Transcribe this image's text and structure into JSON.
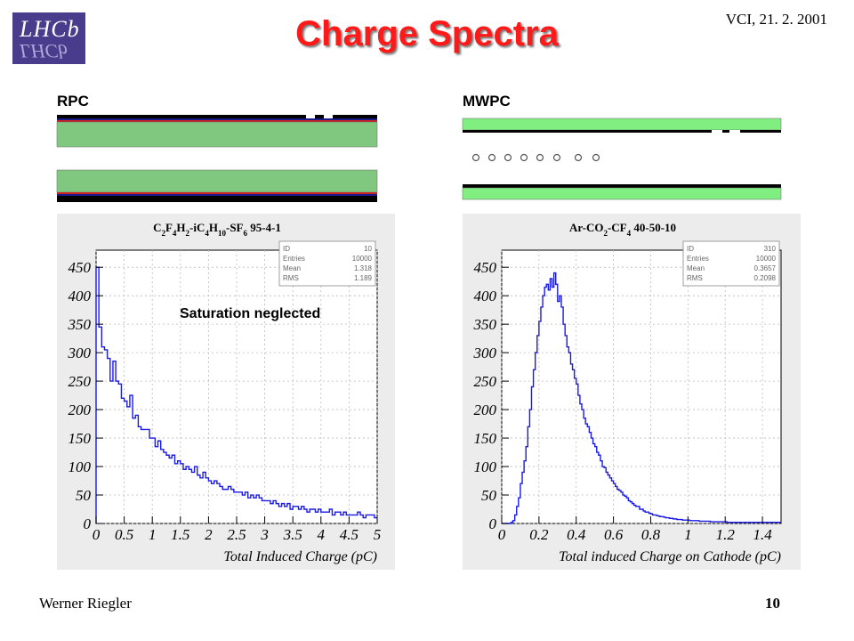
{
  "header": {
    "title": "Charge Spectra",
    "conference": "VCI, 21. 2. 2001",
    "logo_text": "LHCb"
  },
  "detectors": {
    "rpc_label": "RPC",
    "mwpc_label": "MWPC"
  },
  "footer": {
    "author": "Werner Riegler",
    "page": "10"
  },
  "colors": {
    "title": "#ff1a1a",
    "histogram": "#1a1ae6",
    "gas_gap_green": "#80c880",
    "mwpc_green": "#80ee80"
  },
  "chart_data": [
    {
      "type": "histogram",
      "title_parts": [
        "C",
        "2",
        "F",
        "4",
        "H",
        "2",
        "-iC",
        "4",
        "H",
        "10",
        "-SF",
        "6",
        " 95-4-1"
      ],
      "xlabel": "Total Induced Charge (pC)",
      "xlim": [
        0,
        5
      ],
      "ylim": [
        0,
        480
      ],
      "xticks": [
        "0",
        "0.5",
        "1",
        "1.5",
        "2",
        "2.5",
        "3",
        "3.5",
        "4",
        "4.5",
        "5"
      ],
      "yticks": [
        "0",
        "50",
        "100",
        "150",
        "200",
        "250",
        "300",
        "350",
        "400",
        "450"
      ],
      "annotation": "Saturation neglected",
      "stats": [
        [
          "ID",
          "10"
        ],
        [
          "Entries",
          "10000"
        ],
        [
          "Mean",
          "1.318"
        ],
        [
          "RMS",
          "1.189"
        ]
      ],
      "bin_width": 0.05,
      "values": [
        450,
        345,
        310,
        305,
        290,
        250,
        285,
        250,
        245,
        220,
        215,
        205,
        225,
        185,
        190,
        170,
        165,
        165,
        165,
        150,
        150,
        135,
        145,
        130,
        125,
        120,
        115,
        120,
        105,
        110,
        105,
        95,
        100,
        95,
        90,
        100,
        85,
        80,
        90,
        80,
        75,
        70,
        75,
        70,
        65,
        60,
        60,
        65,
        60,
        55,
        55,
        55,
        50,
        55,
        45,
        50,
        45,
        50,
        45,
        40,
        40,
        40,
        35,
        40,
        35,
        30,
        35,
        30,
        35,
        25,
        30,
        30,
        25,
        30,
        25,
        20,
        25,
        25,
        20,
        25,
        20,
        20,
        20,
        25,
        15,
        20,
        20,
        15,
        20,
        15,
        15,
        15,
        15,
        20,
        15,
        10,
        15,
        15,
        15,
        10
      ]
    },
    {
      "type": "histogram",
      "title_parts": [
        "Ar-CO",
        "2",
        "-CF",
        "4",
        " 40-50-10"
      ],
      "xlabel": "Total induced Charge on Cathode (pC)",
      "xlim": [
        0,
        1.5
      ],
      "ylim": [
        0,
        480
      ],
      "xticks": [
        "0",
        "0.2",
        "0.4",
        "0.6",
        "0.8",
        "1",
        "1.2",
        "1.4"
      ],
      "yticks": [
        "0",
        "50",
        "100",
        "150",
        "200",
        "250",
        "300",
        "350",
        "400",
        "450"
      ],
      "stats": [
        [
          "ID",
          "310"
        ],
        [
          "Entries",
          "10000"
        ],
        [
          "Mean",
          "0.3657"
        ],
        [
          "RMS",
          "0.2098"
        ]
      ],
      "bin_width": 0.01,
      "values": [
        0,
        0,
        0,
        0,
        0,
        2,
        5,
        15,
        30,
        45,
        70,
        90,
        110,
        135,
        170,
        200,
        240,
        270,
        300,
        330,
        355,
        380,
        400,
        415,
        420,
        410,
        430,
        415,
        440,
        420,
        390,
        400,
        380,
        350,
        330,
        310,
        300,
        280,
        270,
        255,
        245,
        225,
        210,
        200,
        185,
        175,
        170,
        160,
        150,
        140,
        135,
        125,
        120,
        110,
        100,
        98,
        90,
        85,
        80,
        75,
        70,
        65,
        60,
        58,
        55,
        50,
        48,
        45,
        40,
        38,
        35,
        32,
        30,
        30,
        25,
        25,
        22,
        20,
        20,
        18,
        17,
        15,
        15,
        14,
        13,
        12,
        12,
        11,
        10,
        10,
        9,
        9,
        8,
        8,
        7,
        7,
        7,
        6,
        6,
        6,
        6,
        5,
        5,
        5,
        5,
        5,
        4,
        4,
        4,
        4,
        4,
        4,
        3,
        3,
        3,
        3,
        3,
        3,
        3,
        3,
        3,
        2,
        2,
        2,
        2,
        2,
        2,
        2,
        2,
        2,
        2,
        2,
        2,
        2,
        2,
        2,
        2,
        2,
        2,
        2,
        2,
        2,
        2,
        2,
        2,
        2,
        2,
        2,
        2,
        2
      ]
    }
  ]
}
